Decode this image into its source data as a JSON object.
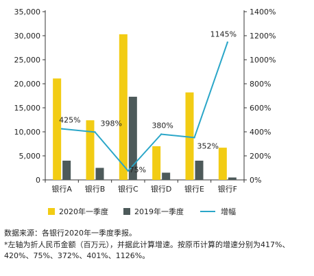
{
  "chart_data": {
    "type": "bar",
    "categories": [
      "银行A",
      "银行B",
      "银行C",
      "银行D",
      "银行E",
      "银行F"
    ],
    "series": [
      {
        "name": "2020年一季度",
        "values": [
          21100,
          12400,
          30300,
          7000,
          18200,
          6700
        ],
        "color": "#f2cc14",
        "axis": "left"
      },
      {
        "name": "2019年一季度",
        "values": [
          4000,
          2500,
          17300,
          1500,
          4000,
          500
        ],
        "color": "#4d5a5a",
        "axis": "left"
      },
      {
        "name": "增幅",
        "type": "line",
        "values": [
          425,
          398,
          75,
          380,
          352,
          1145
        ],
        "labels": [
          "425%",
          "398%",
          "75%",
          "380%",
          "352%",
          "1145%"
        ],
        "color": "#2aa6c8",
        "axis": "right"
      }
    ],
    "ylim": [
      0,
      35000
    ],
    "y_ticks": [
      "0",
      "5,000",
      "10,000",
      "15,000",
      "20,000",
      "25,000",
      "30,000",
      "35,000"
    ],
    "y2lim": [
      0,
      1400
    ],
    "y2_ticks": [
      "0%",
      "200%",
      "400%",
      "600%",
      "800%",
      "1000%",
      "1200%",
      "1400%"
    ],
    "legend_position": "bottom",
    "grid": false
  },
  "notes": {
    "source": "数据来源：各银行2020年一季度季报。",
    "footnote": "*左轴为折人民币金额（百万元），并据此计算增速。按原币计算的增速分别为417%、420%、75%、372%、401%、1126%。"
  }
}
